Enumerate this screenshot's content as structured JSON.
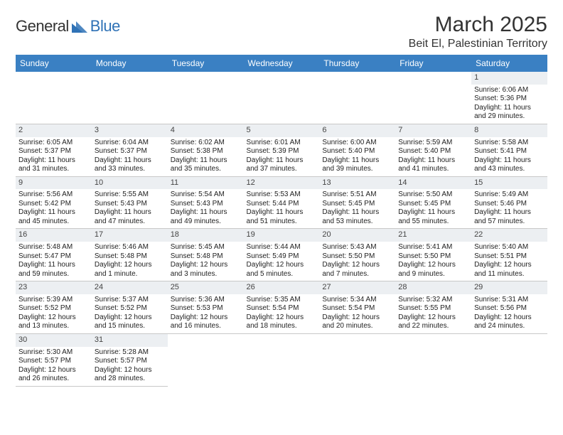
{
  "brand": {
    "part1": "General",
    "part2": "Blue",
    "triangle": "#2f72b6"
  },
  "header": {
    "month": "March 2025",
    "location": "Beit El, Palestinian Territory"
  },
  "weekdays": [
    "Sunday",
    "Monday",
    "Tuesday",
    "Wednesday",
    "Thursday",
    "Friday",
    "Saturday"
  ],
  "colors": {
    "headerBg": "#3a80c3",
    "dayStrip": "#eceff2",
    "rule": "#c8c8c8"
  },
  "days": {
    "1": {
      "sr": "6:06 AM",
      "ss": "5:36 PM",
      "dl": "11 hours and 29 minutes."
    },
    "2": {
      "sr": "6:05 AM",
      "ss": "5:37 PM",
      "dl": "11 hours and 31 minutes."
    },
    "3": {
      "sr": "6:04 AM",
      "ss": "5:37 PM",
      "dl": "11 hours and 33 minutes."
    },
    "4": {
      "sr": "6:02 AM",
      "ss": "5:38 PM",
      "dl": "11 hours and 35 minutes."
    },
    "5": {
      "sr": "6:01 AM",
      "ss": "5:39 PM",
      "dl": "11 hours and 37 minutes."
    },
    "6": {
      "sr": "6:00 AM",
      "ss": "5:40 PM",
      "dl": "11 hours and 39 minutes."
    },
    "7": {
      "sr": "5:59 AM",
      "ss": "5:40 PM",
      "dl": "11 hours and 41 minutes."
    },
    "8": {
      "sr": "5:58 AM",
      "ss": "5:41 PM",
      "dl": "11 hours and 43 minutes."
    },
    "9": {
      "sr": "5:56 AM",
      "ss": "5:42 PM",
      "dl": "11 hours and 45 minutes."
    },
    "10": {
      "sr": "5:55 AM",
      "ss": "5:43 PM",
      "dl": "11 hours and 47 minutes."
    },
    "11": {
      "sr": "5:54 AM",
      "ss": "5:43 PM",
      "dl": "11 hours and 49 minutes."
    },
    "12": {
      "sr": "5:53 AM",
      "ss": "5:44 PM",
      "dl": "11 hours and 51 minutes."
    },
    "13": {
      "sr": "5:51 AM",
      "ss": "5:45 PM",
      "dl": "11 hours and 53 minutes."
    },
    "14": {
      "sr": "5:50 AM",
      "ss": "5:45 PM",
      "dl": "11 hours and 55 minutes."
    },
    "15": {
      "sr": "5:49 AM",
      "ss": "5:46 PM",
      "dl": "11 hours and 57 minutes."
    },
    "16": {
      "sr": "5:48 AM",
      "ss": "5:47 PM",
      "dl": "11 hours and 59 minutes."
    },
    "17": {
      "sr": "5:46 AM",
      "ss": "5:48 PM",
      "dl": "12 hours and 1 minute."
    },
    "18": {
      "sr": "5:45 AM",
      "ss": "5:48 PM",
      "dl": "12 hours and 3 minutes."
    },
    "19": {
      "sr": "5:44 AM",
      "ss": "5:49 PM",
      "dl": "12 hours and 5 minutes."
    },
    "20": {
      "sr": "5:43 AM",
      "ss": "5:50 PM",
      "dl": "12 hours and 7 minutes."
    },
    "21": {
      "sr": "5:41 AM",
      "ss": "5:50 PM",
      "dl": "12 hours and 9 minutes."
    },
    "22": {
      "sr": "5:40 AM",
      "ss": "5:51 PM",
      "dl": "12 hours and 11 minutes."
    },
    "23": {
      "sr": "5:39 AM",
      "ss": "5:52 PM",
      "dl": "12 hours and 13 minutes."
    },
    "24": {
      "sr": "5:37 AM",
      "ss": "5:52 PM",
      "dl": "12 hours and 15 minutes."
    },
    "25": {
      "sr": "5:36 AM",
      "ss": "5:53 PM",
      "dl": "12 hours and 16 minutes."
    },
    "26": {
      "sr": "5:35 AM",
      "ss": "5:54 PM",
      "dl": "12 hours and 18 minutes."
    },
    "27": {
      "sr": "5:34 AM",
      "ss": "5:54 PM",
      "dl": "12 hours and 20 minutes."
    },
    "28": {
      "sr": "5:32 AM",
      "ss": "5:55 PM",
      "dl": "12 hours and 22 minutes."
    },
    "29": {
      "sr": "5:31 AM",
      "ss": "5:56 PM",
      "dl": "12 hours and 24 minutes."
    },
    "30": {
      "sr": "5:30 AM",
      "ss": "5:57 PM",
      "dl": "12 hours and 26 minutes."
    },
    "31": {
      "sr": "5:28 AM",
      "ss": "5:57 PM",
      "dl": "12 hours and 28 minutes."
    }
  },
  "labels": {
    "sunrise": "Sunrise: ",
    "sunset": "Sunset: ",
    "daylight": "Daylight: "
  },
  "grid": {
    "leadingEmpty": 6,
    "daysInMonth": 31
  }
}
